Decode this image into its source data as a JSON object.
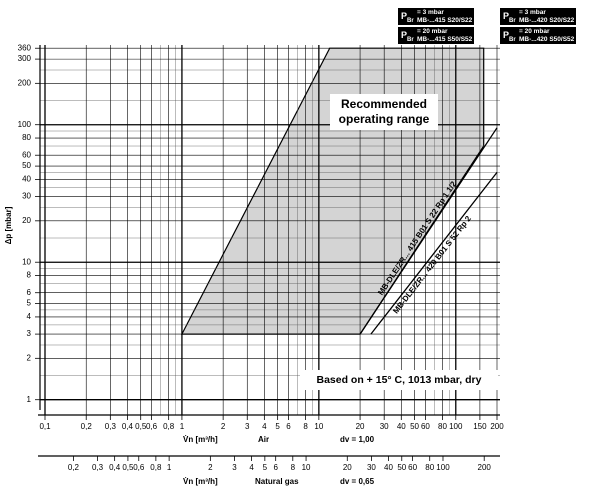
{
  "chart_data": {
    "type": "line",
    "ylabel": "Δp [mbar]",
    "xlabel": "V̇n [m³/h]",
    "xlabel_medium": "Air",
    "xlabel_dv": "dv = 1,00",
    "x2label": "V̇n [m³/h]",
    "x2label_medium": "Natural gas",
    "x2label_dv": "dv = 0,65",
    "log_x": true,
    "log_y": true,
    "grid": true,
    "xlim": [
      0.1,
      200
    ],
    "ylim": [
      0.9,
      380
    ],
    "x2lim": [
      0.124,
      248
    ],
    "xticks": [
      {
        "value": 0.1,
        "label": "0,1"
      },
      {
        "value": 0.2,
        "label": "0,2"
      },
      {
        "value": 0.3,
        "label": "0,3"
      },
      {
        "value": 0.4,
        "label": "0,4"
      },
      {
        "value": 0.5,
        "label": "0,5"
      },
      {
        "value": 0.6,
        "label": "0,6"
      },
      {
        "value": 0.8,
        "label": "0,8"
      },
      1,
      2,
      3,
      4,
      5,
      6,
      8,
      10,
      20,
      30,
      40,
      50,
      60,
      80,
      100,
      150,
      200
    ],
    "x_minor_ticks": [
      0.7,
      0.9,
      7,
      9,
      70,
      90
    ],
    "yticks": [
      1,
      2,
      3,
      4,
      5,
      6,
      8,
      10,
      20,
      30,
      40,
      50,
      60,
      80,
      100,
      200,
      300,
      360
    ],
    "y_minor_ticks": [
      1.5,
      2.5,
      3.5,
      4.5,
      7,
      9,
      15,
      25,
      35,
      45,
      70,
      90,
      150,
      250
    ],
    "x2ticks": [
      {
        "value": 0.2,
        "label": "0,2"
      },
      {
        "value": 0.3,
        "label": "0,3"
      },
      {
        "value": 0.4,
        "label": "0,4"
      },
      {
        "value": 0.5,
        "label": "0,5"
      },
      {
        "value": 0.6,
        "label": "0,6"
      },
      {
        "value": 0.8,
        "label": "0,8"
      },
      1,
      2,
      3,
      4,
      5,
      6,
      8,
      10,
      20,
      30,
      40,
      50,
      60,
      80,
      100,
      200
    ],
    "series": [
      {
        "name": "Recommended operating range",
        "kind": "area",
        "color": "#d4d4d4",
        "x": [
          1,
          12,
          160,
          160,
          20
        ],
        "values": [
          3,
          360,
          360,
          70,
          3
        ]
      },
      {
        "name": "MB-DLE/ZR... 415 B01 S 22 Rp 1 1/2",
        "kind": "line",
        "color": "#000000",
        "x": [
          20,
          200
        ],
        "values": [
          3,
          95
        ]
      },
      {
        "name": "MB-DLE/ZR... 420 B01 S 52 Rp 2",
        "kind": "line",
        "color": "#000000",
        "x": [
          24,
          200
        ],
        "values": [
          3,
          45
        ]
      }
    ],
    "annotation": "Based on  + 15° C, 1013 mbar, dry",
    "legend": [
      {
        "symbol": "P",
        "sub": "Br",
        "line1": "= 3 mbar",
        "line2": "MB-...415 S20/S22"
      },
      {
        "symbol": "P",
        "sub": "Br",
        "line1": "= 20 mbar",
        "line2": "MB-...415 S50/S52"
      },
      {
        "symbol": "P",
        "sub": "Br",
        "line1": "= 3 mbar",
        "line2": "MB-...420 S20/S22"
      },
      {
        "symbol": "P",
        "sub": "Br",
        "line1": "= 20 mbar",
        "line2": "MB-...420 S50/S52"
      }
    ]
  }
}
